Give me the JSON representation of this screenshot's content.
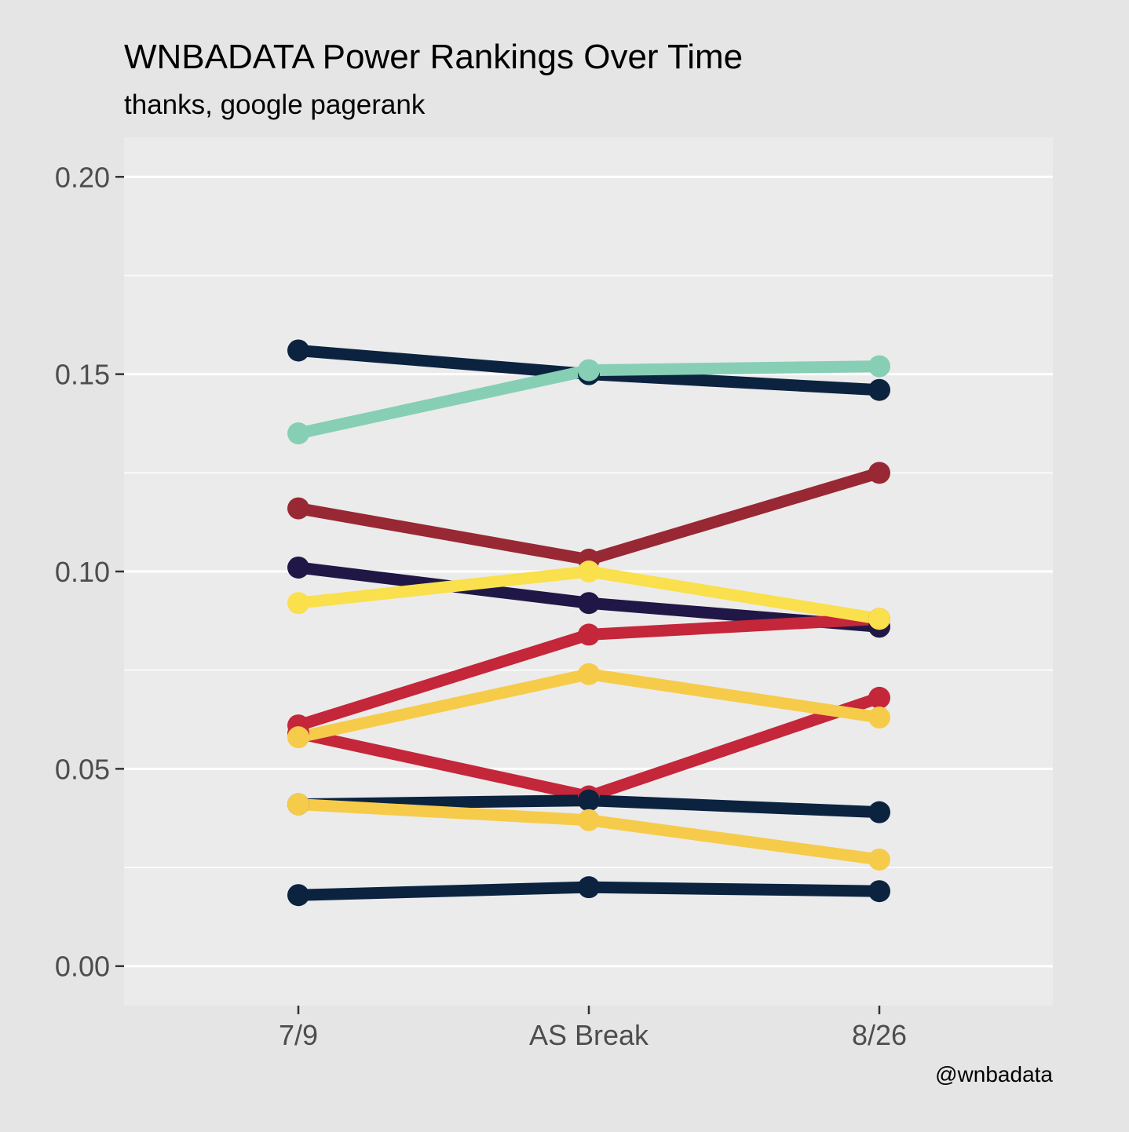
{
  "chart_data": {
    "type": "line",
    "title": "WNBADATA Power Rankings Over Time",
    "subtitle": "thanks, google pagerank",
    "caption": "@wnbadata",
    "xlabel": "",
    "ylabel": "",
    "categories": [
      "7/9",
      "AS Break",
      "8/26"
    ],
    "ylim": [
      -0.01,
      0.21
    ],
    "y_ticks": [
      "0.00",
      "0.05",
      "0.10",
      "0.15",
      "0.20"
    ],
    "y_tick_values": [
      0.0,
      0.05,
      0.1,
      0.15,
      0.2
    ],
    "y_minor_gridlines": [
      0.025,
      0.075,
      0.125,
      0.175
    ],
    "grid": true,
    "legend": "none",
    "series": [
      {
        "color": "#0c2340",
        "values": [
          0.156,
          0.15,
          0.146
        ]
      },
      {
        "color": "#86cfb4",
        "values": [
          0.135,
          0.151,
          0.152
        ]
      },
      {
        "color": "#982833",
        "values": [
          0.116,
          0.103,
          0.125
        ]
      },
      {
        "color": "#201747",
        "values": [
          0.101,
          0.092,
          0.086
        ]
      },
      {
        "color": "#c4263a",
        "values": [
          0.061,
          0.084,
          0.088
        ]
      },
      {
        "color": "#f9e04c",
        "values": [
          0.092,
          0.1,
          0.088
        ]
      },
      {
        "color": "#c4263a",
        "values": [
          0.059,
          0.043,
          0.068
        ]
      },
      {
        "color": "#f6cb4a",
        "values": [
          0.058,
          0.074,
          0.063
        ]
      },
      {
        "color": "#0c2340",
        "values": [
          0.041,
          0.042,
          0.039
        ]
      },
      {
        "color": "#f6cb4a",
        "values": [
          0.041,
          0.037,
          0.027
        ]
      },
      {
        "color": "#0c2340",
        "values": [
          0.018,
          0.02,
          0.019
        ]
      }
    ]
  }
}
